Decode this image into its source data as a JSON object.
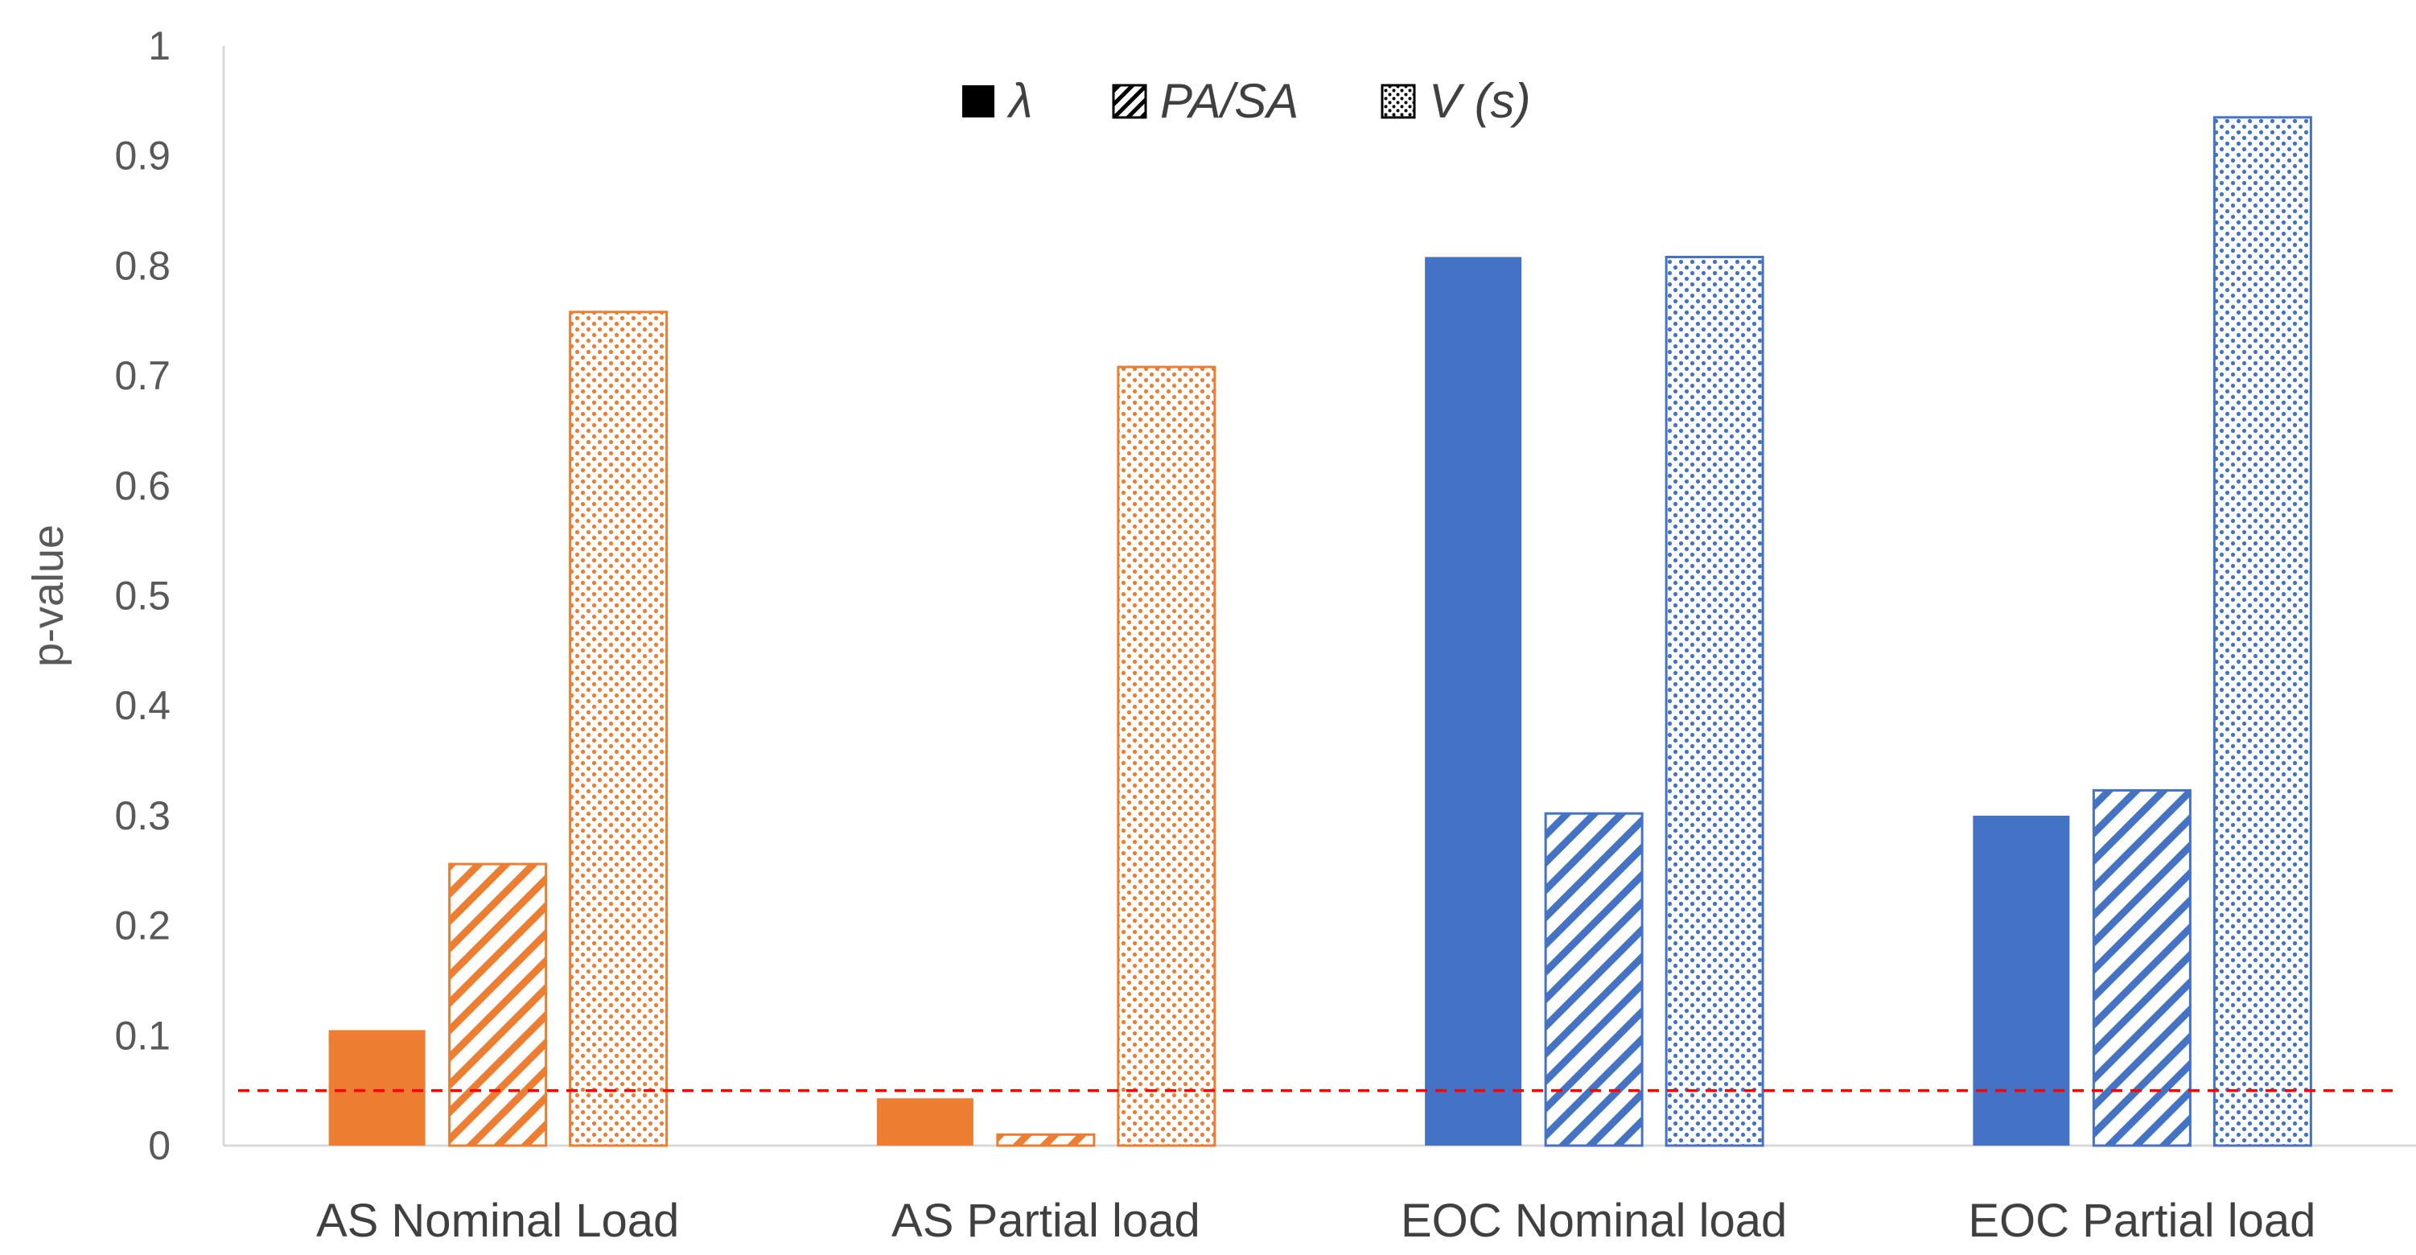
{
  "chart_data": {
    "type": "bar",
    "title": "",
    "xlabel": "",
    "ylabel": "p-value",
    "ylim": [
      0,
      1
    ],
    "yticks": [
      "0",
      "0.1",
      "0.2",
      "0.3",
      "0.4",
      "0.5",
      "0.6",
      "0.7",
      "0.8",
      "0.9",
      "1"
    ],
    "categories": [
      "AS Nominal Load",
      "AS Partial load",
      "EOC Nominal load",
      "EOC Partial load"
    ],
    "category_colors": [
      "#ED7D31",
      "#ED7D31",
      "#4472C4",
      "#4472C4"
    ],
    "series": [
      {
        "name": "λ",
        "pattern": "solid",
        "values": [
          0.105,
          0.043,
          0.808,
          0.3
        ]
      },
      {
        "name": "PA/SA",
        "pattern": "diagonal-hatch",
        "values": [
          0.256,
          0.01,
          0.302,
          0.323
        ]
      },
      {
        "name": "V (s)",
        "pattern": "dots",
        "values": [
          0.758,
          0.708,
          0.808,
          0.935
        ]
      }
    ],
    "reference_line": {
      "value": 0.05,
      "color": "#FF0000",
      "style": "dashed"
    },
    "legend_position": "top-center",
    "grid": false
  }
}
